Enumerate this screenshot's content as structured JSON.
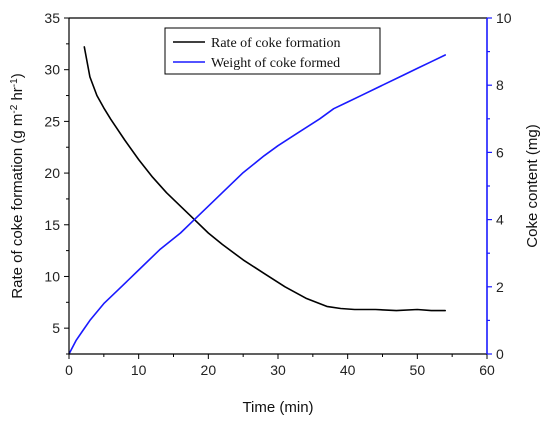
{
  "chart_data": {
    "type": "line",
    "xlabel": "Time (min)",
    "ylabel_left": "Rate of coke formation (g m^-2 hr^-1)",
    "ylabel_right": "Coke content (mg)",
    "xlim": [
      0,
      60
    ],
    "ylim_left": [
      2.5,
      35
    ],
    "ylim_right": [
      0,
      10
    ],
    "x_ticks": [
      0,
      10,
      20,
      30,
      40,
      50,
      60
    ],
    "y_left_ticks": [
      5,
      10,
      15,
      20,
      25,
      30,
      35
    ],
    "y_right_ticks": [
      0,
      2,
      4,
      6,
      8,
      10
    ],
    "grid": false,
    "legend_position": "top-center",
    "series": [
      {
        "name": "Rate of coke formation",
        "axis": "left",
        "color": "#000000",
        "x": [
          2.2,
          3,
          4,
          5,
          6,
          8,
          10,
          12,
          14,
          16,
          18,
          20,
          22,
          25,
          28,
          31,
          34,
          37,
          39,
          41,
          44,
          47,
          50,
          52,
          54
        ],
        "y": [
          32.2,
          29.3,
          27.5,
          26.3,
          25.2,
          23.2,
          21.3,
          19.6,
          18.1,
          16.8,
          15.5,
          14.2,
          13.1,
          11.6,
          10.3,
          9.0,
          7.9,
          7.1,
          6.9,
          6.8,
          6.8,
          6.7,
          6.8,
          6.7,
          6.7
        ]
      },
      {
        "name": "Weight of coke formed",
        "axis": "right",
        "color": "#1a1aff",
        "x": [
          0,
          1,
          2,
          3,
          5,
          7,
          10,
          13,
          16,
          18,
          20,
          22,
          25,
          28,
          30,
          33,
          36,
          38,
          40,
          42,
          45,
          48,
          50,
          52,
          54
        ],
        "y": [
          0.0,
          0.4,
          0.7,
          1.0,
          1.5,
          1.9,
          2.5,
          3.1,
          3.6,
          4.0,
          4.4,
          4.8,
          5.4,
          5.9,
          6.2,
          6.6,
          7.0,
          7.3,
          7.5,
          7.7,
          8.0,
          8.3,
          8.5,
          8.7,
          8.9
        ]
      }
    ]
  }
}
